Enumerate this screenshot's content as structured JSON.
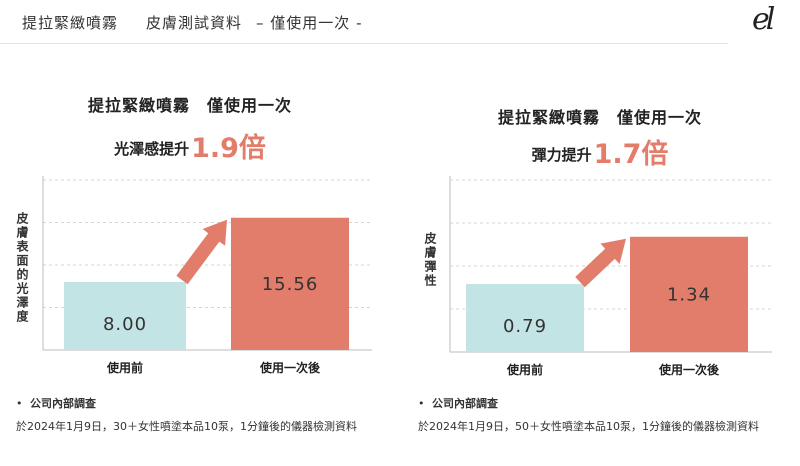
{
  "header": {
    "title_part1": "提拉緊緻噴霧",
    "title_part2": "皮膚測試資料",
    "title_part3": "– 僅使用一次 -",
    "logo": "el"
  },
  "panels": [
    {
      "headline": "提拉緊緻噴霧　僅使用一次",
      "subline_prefix": "光澤感提升",
      "subline_value": "1.9倍",
      "ylabel": "皮膚表面的光澤度",
      "footnote_bullet": "•",
      "footnote_head": "公司內部調查",
      "footnote_body": "於2024年1月9日，30＋女性噴塗本品10泵，1分鐘後的儀器檢測資料"
    },
    {
      "headline": "提拉緊緻噴霧　僅使用一次",
      "subline_prefix": "彈力提升",
      "subline_value": "1.7倍",
      "ylabel": "皮膚彈性",
      "footnote_bullet": "•",
      "footnote_head": "公司內部調查",
      "footnote_body": "於2024年1月9日，50＋女性噴塗本品10泵，1分鐘後的儀器檢測資料"
    }
  ],
  "chart_data": [
    {
      "type": "bar",
      "categories": [
        "使用前",
        "使用一次後"
      ],
      "values": [
        8.0,
        15.56
      ],
      "value_labels": [
        "8.00",
        "15.56"
      ],
      "ylabel": "皮膚表面的光澤度",
      "ylim": [
        0,
        20
      ],
      "grid": true,
      "colors": [
        "#c3e4e4",
        "#e37d6b"
      ],
      "arrow_color": "#e37d6b"
    },
    {
      "type": "bar",
      "categories": [
        "使用前",
        "使用一次後"
      ],
      "values": [
        0.79,
        1.34
      ],
      "value_labels": [
        "0.79",
        "1.34"
      ],
      "ylabel": "皮膚彈性",
      "ylim": [
        0,
        2
      ],
      "grid": true,
      "colors": [
        "#c3e4e4",
        "#e37d6b"
      ],
      "arrow_color": "#e37d6b"
    }
  ]
}
